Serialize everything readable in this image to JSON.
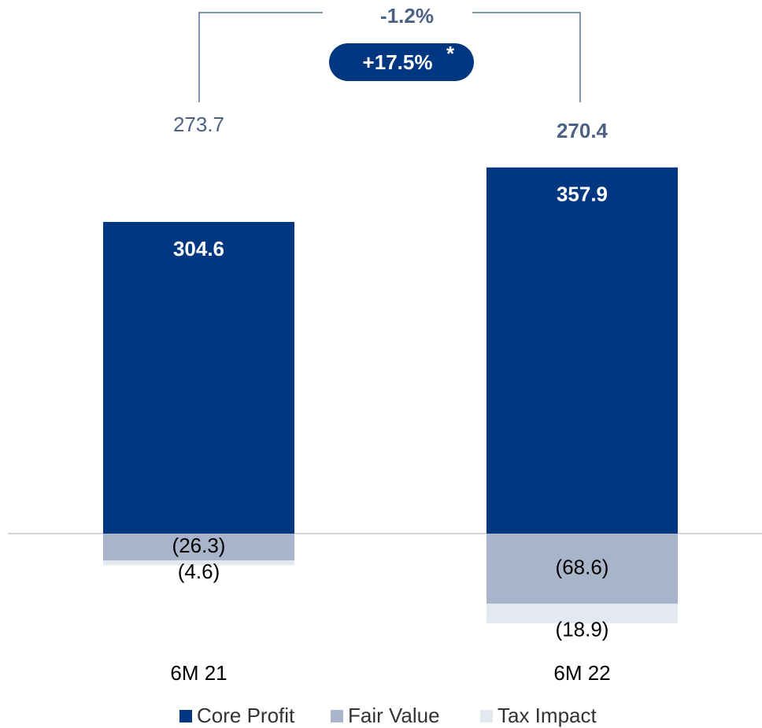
{
  "chart_data": {
    "type": "stacked_bar",
    "categories": [
      "6M 21",
      "6M 22"
    ],
    "series": [
      {
        "name": "Core Profit",
        "color": "#003780",
        "values": [
          304.6,
          357.9
        ]
      },
      {
        "name": "Fair Value",
        "color": "#a7b4c9",
        "values": [
          -26.3,
          -68.6
        ],
        "value_labels": [
          "(26.3)",
          "(68.6)"
        ]
      },
      {
        "name": "Tax Impact",
        "color": "#e3e8f1",
        "values": [
          -4.6,
          -18.9
        ],
        "value_labels": [
          "(4.6)",
          "(18.9)"
        ]
      }
    ],
    "totals": [
      273.7,
      270.4
    ],
    "growth": "-1.2%",
    "growth_adjusted": "+17.5%",
    "footnote_mark": "*",
    "legend": "bottom"
  }
}
